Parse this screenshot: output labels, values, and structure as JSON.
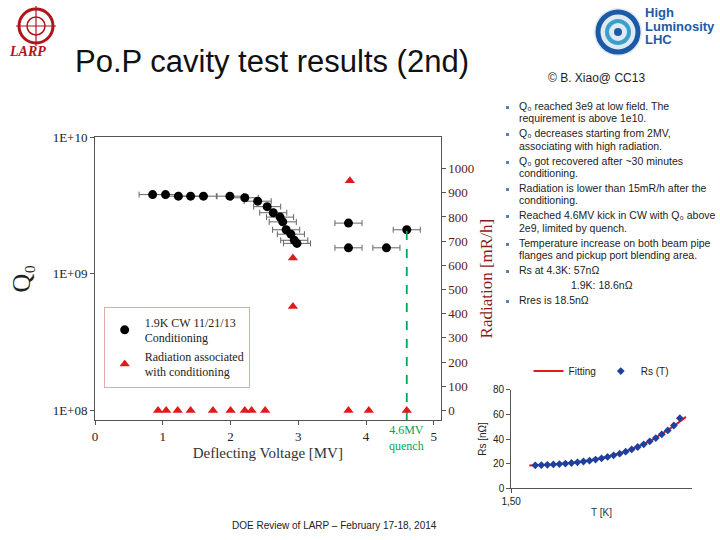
{
  "slide": {
    "title": "Po.P cavity test results (2nd)",
    "credit": "© B. Xiao@ CC13",
    "logos": {
      "left": "LARP",
      "right": [
        "High",
        "Luminosity",
        "LHC"
      ]
    },
    "bullets": [
      "Q₀ reached 3e9 at low field. The requirement is above 1e10.",
      "Q₀ decreases starting from 2MV, associating with high radiation.",
      "Q₀ got recovered after ~30 minutes conditioning.",
      "Radiation is lower than 15mR/h after the conditioning.",
      "Reached 4.6MV kick in CW with Q₀ above 2e9, limited by quench.",
      "Temperature increase on both beam pipe flanges and pickup port blending area.",
      "Rs at 4.3K: 57nΩ\n1.9K: 18.6nΩ",
      "Rres is 18.5nΩ"
    ],
    "footer": "DOE Review of LARP – February 17-18, 2014"
  },
  "chart_data": [
    {
      "type": "scatter",
      "x_label": "Deflecting Voltage [MV]",
      "y_label": "Q₀",
      "y2_label": "Radiation [mR/h]",
      "log": "y",
      "grid": false,
      "legend": "lower left",
      "xlim": [
        0,
        5.1
      ],
      "xticks": [
        0,
        1,
        2,
        3,
        4,
        5
      ],
      "ylim": [
        85000000,
        10000000000
      ],
      "yticks": [
        {
          "value": 100000000,
          "label": "1E+08"
        },
        {
          "value": 1000000000,
          "label": "1E+09"
        },
        {
          "value": 10000000000,
          "label": "1E+10"
        }
      ],
      "y2lim": [
        -40,
        1130
      ],
      "y2ticks": [
        0,
        100,
        200,
        300,
        400,
        500,
        600,
        700,
        800,
        900,
        1000
      ],
      "series": [
        {
          "name": "1.9K CW 11/21/13\nConditioning",
          "type": "scatter",
          "marker": "circle",
          "color": "#000000",
          "x": [
            0.85,
            1.04,
            1.23,
            1.41,
            1.6,
            1.99,
            2.21,
            2.4,
            2.54,
            2.63,
            2.73,
            2.77,
            2.82,
            2.89,
            2.94,
            2.98,
            3.74,
            3.74,
            4.3,
            4.6
          ],
          "values": [
            3800000000,
            3800000000,
            3700000000,
            3700000000,
            3700000000,
            3700000000,
            3600000000,
            3400000000,
            3100000000,
            2800000000,
            2600000000,
            2400000000,
            2100000000,
            1950000000,
            1760000000,
            1670000000,
            2350000000,
            1550000000,
            1550000000,
            2100000000
          ],
          "x_error": [
            0.2,
            0.2,
            0.2,
            0.2,
            0.2,
            0.2,
            0.2,
            0.2,
            0.2,
            0.2,
            0.2,
            0.2,
            0.2,
            0.2,
            0.2,
            0.2,
            0.2,
            0.2,
            0.2,
            0.2
          ]
        },
        {
          "name": "Radiation associated\nwith conditioning",
          "type": "scatter",
          "marker": "triangle",
          "color": "#e0191b",
          "axis": "y2",
          "x": [
            0.93,
            1.05,
            1.22,
            1.41,
            1.74,
            2.0,
            2.21,
            2.31,
            2.51,
            2.92,
            2.92,
            3.76,
            3.74,
            4.04,
            4.6
          ],
          "values": [
            0,
            0,
            0,
            0,
            0,
            0,
            0,
            0,
            0,
            630,
            430,
            950,
            0,
            0,
            0
          ]
        },
        {
          "type": "line",
          "line_style": "dashed",
          "color": "#00a651",
          "x": [
            4.6,
            4.6
          ],
          "values": [
            85000000,
            2100000000
          ]
        }
      ],
      "annotations": [
        {
          "x": 4.6,
          "text": "4.6MV\nquench",
          "color": "#00a651"
        }
      ]
    },
    {
      "type": "scatter",
      "x_label": "T [K]",
      "y_label": "Rs [nΩ]",
      "grid": false,
      "legend": "top",
      "xlim": [
        1.5,
        4.5
      ],
      "xticks": [
        {
          "value": 1.5,
          "label": "1,50"
        }
      ],
      "ylim": [
        0,
        80
      ],
      "yticks": [
        0,
        20,
        40,
        60,
        80
      ],
      "series": [
        {
          "name": "Fitting",
          "type": "line",
          "line_style": "solid",
          "color": "#e0191b",
          "x": [
            1.8,
            2.2,
            2.6,
            3.0,
            3.4,
            3.8,
            4.2,
            4.4
          ],
          "values": [
            18.5,
            19.2,
            21.0,
            24.3,
            29.7,
            38.0,
            50.5,
            58.0
          ]
        },
        {
          "name": "Rs (T)",
          "type": "scatter",
          "marker": "diamond",
          "color": "#1f3f9f",
          "x": [
            1.9,
            2.0,
            2.1,
            2.2,
            2.3,
            2.4,
            2.5,
            2.6,
            2.7,
            2.8,
            2.9,
            3.0,
            3.1,
            3.2,
            3.3,
            3.4,
            3.5,
            3.6,
            3.7,
            3.8,
            3.9,
            4.0,
            4.1,
            4.2,
            4.3
          ],
          "values": [
            18.6,
            18.8,
            19.0,
            19.3,
            19.6,
            20.0,
            20.5,
            21.0,
            21.7,
            22.4,
            23.3,
            24.3,
            25.4,
            26.7,
            28.1,
            29.7,
            31.5,
            33.5,
            35.7,
            38.1,
            40.8,
            43.8,
            47.0,
            51.0,
            57.0
          ]
        }
      ]
    }
  ]
}
